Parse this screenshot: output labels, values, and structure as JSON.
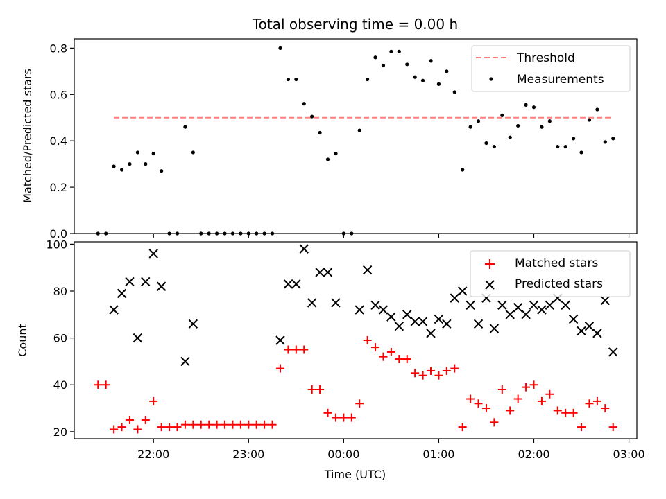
{
  "title": "Total observing time = 0.00 h",
  "chart_data": [
    {
      "type": "scatter",
      "ylabel": "Matched/Predicted stars",
      "xlabel": "",
      "ylim": [
        0,
        0.84
      ],
      "yticks": [
        "0.0",
        "0.2",
        "0.4",
        "0.6",
        "0.8"
      ],
      "ytick_values": [
        0,
        0.2,
        0.4,
        0.6,
        0.8
      ],
      "legend_position": "top-right",
      "threshold": {
        "name": "Threshold",
        "value": 0.5,
        "x_start": "21:35",
        "x_end": "02:49",
        "color": "#ff7f7f",
        "style": "dashed"
      },
      "series": [
        {
          "name": "Measurements",
          "marker": "dot",
          "color": "#000000",
          "points": [
            [
              "21:25",
              0.0
            ],
            [
              "21:30",
              0.0
            ],
            [
              "21:35",
              0.29
            ],
            [
              "21:40",
              0.275
            ],
            [
              "21:45",
              0.3
            ],
            [
              "21:50",
              0.35
            ],
            [
              "21:55",
              0.3
            ],
            [
              "22:00",
              0.345
            ],
            [
              "22:05",
              0.27
            ],
            [
              "22:10",
              0.0
            ],
            [
              "22:15",
              0.0
            ],
            [
              "22:20",
              0.46
            ],
            [
              "22:25",
              0.35
            ],
            [
              "22:30",
              0.0
            ],
            [
              "22:35",
              0.0
            ],
            [
              "22:40",
              0.0
            ],
            [
              "22:45",
              0.0
            ],
            [
              "22:50",
              0.0
            ],
            [
              "22:55",
              0.0
            ],
            [
              "23:00",
              0.0
            ],
            [
              "23:05",
              0.0
            ],
            [
              "23:10",
              0.0
            ],
            [
              "23:15",
              0.0
            ],
            [
              "23:20",
              0.8
            ],
            [
              "23:25",
              0.665
            ],
            [
              "23:30",
              0.665
            ],
            [
              "23:35",
              0.56
            ],
            [
              "23:40",
              0.505
            ],
            [
              "23:45",
              0.435
            ],
            [
              "23:50",
              0.32
            ],
            [
              "23:55",
              0.345
            ],
            [
              "00:00",
              0.0
            ],
            [
              "00:05",
              0.0
            ],
            [
              "00:10",
              0.445
            ],
            [
              "00:15",
              0.665
            ],
            [
              "00:20",
              0.76
            ],
            [
              "00:25",
              0.725
            ],
            [
              "00:30",
              0.785
            ],
            [
              "00:35",
              0.785
            ],
            [
              "00:40",
              0.73
            ],
            [
              "00:45",
              0.675
            ],
            [
              "00:50",
              0.66
            ],
            [
              "00:55",
              0.745
            ],
            [
              "01:00",
              0.645
            ],
            [
              "01:05",
              0.7
            ],
            [
              "01:10",
              0.61
            ],
            [
              "01:15",
              0.275
            ],
            [
              "01:20",
              0.46
            ],
            [
              "01:25",
              0.485
            ],
            [
              "01:30",
              0.39
            ],
            [
              "01:35",
              0.375
            ],
            [
              "01:40",
              0.51
            ],
            [
              "01:45",
              0.415
            ],
            [
              "01:50",
              0.465
            ],
            [
              "01:55",
              0.555
            ],
            [
              "02:00",
              0.545
            ],
            [
              "02:05",
              0.46
            ],
            [
              "02:10",
              0.485
            ],
            [
              "02:15",
              0.375
            ],
            [
              "02:20",
              0.375
            ],
            [
              "02:25",
              0.41
            ],
            [
              "02:30",
              0.35
            ],
            [
              "02:35",
              0.49
            ],
            [
              "02:40",
              0.535
            ],
            [
              "02:45",
              0.395
            ],
            [
              "02:50",
              0.41
            ]
          ]
        }
      ]
    },
    {
      "type": "scatter",
      "ylabel": "Count",
      "xlabel": "Time (UTC)",
      "ylim": [
        17,
        101
      ],
      "yticks": [
        "20",
        "40",
        "60",
        "80",
        "100"
      ],
      "ytick_values": [
        20,
        40,
        60,
        80,
        100
      ],
      "xlim": [
        "21:10",
        "03:05"
      ],
      "xticks": [
        "22:00",
        "23:00",
        "00:00",
        "01:00",
        "02:00",
        "03:00"
      ],
      "legend_position": "top-right",
      "series": [
        {
          "name": "Matched stars",
          "marker": "plus",
          "color": "#ff0000",
          "points": [
            [
              "21:25",
              40
            ],
            [
              "21:30",
              40
            ],
            [
              "21:35",
              21
            ],
            [
              "21:40",
              22
            ],
            [
              "21:45",
              25
            ],
            [
              "21:50",
              21
            ],
            [
              "21:55",
              25
            ],
            [
              "22:00",
              33
            ],
            [
              "22:05",
              22
            ],
            [
              "22:10",
              22
            ],
            [
              "22:15",
              22
            ],
            [
              "22:20",
              23
            ],
            [
              "22:25",
              23
            ],
            [
              "22:30",
              23
            ],
            [
              "22:35",
              23
            ],
            [
              "22:40",
              23
            ],
            [
              "22:45",
              23
            ],
            [
              "22:50",
              23
            ],
            [
              "22:55",
              23
            ],
            [
              "23:00",
              23
            ],
            [
              "23:05",
              23
            ],
            [
              "23:10",
              23
            ],
            [
              "23:15",
              23
            ],
            [
              "23:20",
              47
            ],
            [
              "23:25",
              55
            ],
            [
              "23:30",
              55
            ],
            [
              "23:35",
              55
            ],
            [
              "23:40",
              38
            ],
            [
              "23:45",
              38
            ],
            [
              "23:50",
              28
            ],
            [
              "23:55",
              26
            ],
            [
              "00:00",
              26
            ],
            [
              "00:05",
              26
            ],
            [
              "00:10",
              32
            ],
            [
              "00:15",
              59
            ],
            [
              "00:20",
              56
            ],
            [
              "00:25",
              52
            ],
            [
              "00:30",
              54
            ],
            [
              "00:35",
              51
            ],
            [
              "00:40",
              51
            ],
            [
              "00:45",
              45
            ],
            [
              "00:50",
              44
            ],
            [
              "00:55",
              46
            ],
            [
              "01:00",
              44
            ],
            [
              "01:05",
              46
            ],
            [
              "01:10",
              47
            ],
            [
              "01:15",
              22
            ],
            [
              "01:20",
              34
            ],
            [
              "01:25",
              32
            ],
            [
              "01:30",
              30
            ],
            [
              "01:35",
              24
            ],
            [
              "01:40",
              38
            ],
            [
              "01:45",
              29
            ],
            [
              "01:50",
              34
            ],
            [
              "01:55",
              39
            ],
            [
              "02:00",
              40
            ],
            [
              "02:05",
              33
            ],
            [
              "02:10",
              36
            ],
            [
              "02:15",
              29
            ],
            [
              "02:20",
              28
            ],
            [
              "02:25",
              28
            ],
            [
              "02:30",
              22
            ],
            [
              "02:35",
              32
            ],
            [
              "02:40",
              33
            ],
            [
              "02:45",
              30
            ],
            [
              "02:50",
              22
            ]
          ]
        },
        {
          "name": "Predicted stars",
          "marker": "x",
          "color": "#000000",
          "points": [
            [
              "21:35",
              72
            ],
            [
              "21:40",
              79
            ],
            [
              "21:45",
              84
            ],
            [
              "21:50",
              60
            ],
            [
              "21:55",
              84
            ],
            [
              "22:00",
              96
            ],
            [
              "22:05",
              82
            ],
            [
              "22:20",
              50
            ],
            [
              "22:25",
              66
            ],
            [
              "23:20",
              59
            ],
            [
              "23:25",
              83
            ],
            [
              "23:30",
              83
            ],
            [
              "23:35",
              98
            ],
            [
              "23:40",
              75
            ],
            [
              "23:45",
              88
            ],
            [
              "23:50",
              88
            ],
            [
              "23:55",
              75
            ],
            [
              "00:10",
              72
            ],
            [
              "00:15",
              89
            ],
            [
              "00:20",
              74
            ],
            [
              "00:25",
              72
            ],
            [
              "00:30",
              69
            ],
            [
              "00:35",
              65
            ],
            [
              "00:40",
              70
            ],
            [
              "00:45",
              67
            ],
            [
              "00:50",
              67
            ],
            [
              "00:55",
              62
            ],
            [
              "01:00",
              68
            ],
            [
              "01:05",
              66
            ],
            [
              "01:10",
              77
            ],
            [
              "01:15",
              80
            ],
            [
              "01:20",
              74
            ],
            [
              "01:25",
              66
            ],
            [
              "01:30",
              77
            ],
            [
              "01:35",
              64
            ],
            [
              "01:40",
              74
            ],
            [
              "01:45",
              70
            ],
            [
              "01:50",
              73
            ],
            [
              "01:55",
              70
            ],
            [
              "02:00",
              74
            ],
            [
              "02:05",
              72
            ],
            [
              "02:10",
              74
            ],
            [
              "02:15",
              77
            ],
            [
              "02:20",
              74
            ],
            [
              "02:25",
              68
            ],
            [
              "02:30",
              63
            ],
            [
              "02:35",
              65
            ],
            [
              "02:40",
              62
            ],
            [
              "02:45",
              76
            ],
            [
              "02:50",
              54
            ]
          ]
        }
      ]
    }
  ]
}
